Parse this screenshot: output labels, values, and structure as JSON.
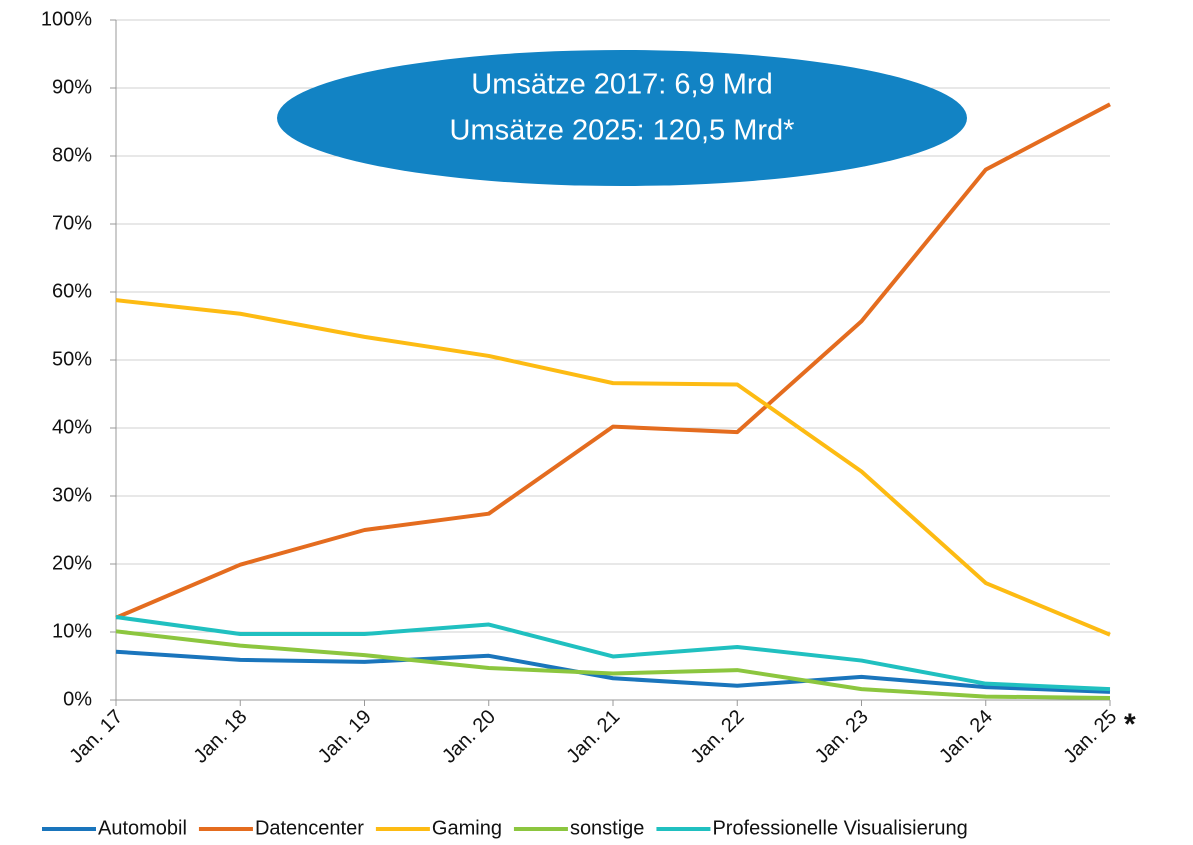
{
  "chart_data": {
    "type": "line",
    "annotation": [
      "Umsätze 2017: 6,9 Mrd",
      "Umsätze 2025: 120,5 Mrd*"
    ],
    "annotation_color": "#1283c4",
    "categories": [
      "Jan. 17",
      "Jan. 18",
      "Jan. 19",
      "Jan. 20",
      "Jan. 21",
      "Jan. 22",
      "Jan. 23",
      "Jan. 24",
      "Jan. 25"
    ],
    "category_note": "*",
    "series": [
      {
        "name": "Automobil",
        "color": "#1a75bc",
        "values": [
          7.1,
          5.9,
          5.6,
          6.5,
          3.2,
          2.1,
          3.4,
          1.9,
          1.2
        ]
      },
      {
        "name": "Datencenter",
        "color": "#e46c1f",
        "values": [
          12.1,
          19.9,
          25.0,
          27.4,
          40.2,
          39.4,
          55.7,
          78.0,
          87.6
        ]
      },
      {
        "name": "Gaming",
        "color": "#fdbb13",
        "values": [
          58.8,
          56.8,
          53.4,
          50.6,
          46.6,
          46.4,
          33.6,
          17.2,
          9.6
        ]
      },
      {
        "name": "sonstige",
        "color": "#8cc63f",
        "values": [
          10.1,
          8.0,
          6.6,
          4.7,
          3.9,
          4.4,
          1.6,
          0.5,
          0.3
        ]
      },
      {
        "name": "Professionelle Visualisierung",
        "color": "#20c0c0",
        "values": [
          12.2,
          9.7,
          9.7,
          11.1,
          6.4,
          7.8,
          5.8,
          2.4,
          1.6
        ]
      }
    ],
    "ylim": [
      0,
      100
    ],
    "yticks": [
      {
        "value": 0,
        "label": "0%"
      },
      {
        "value": 10,
        "label": "10%"
      },
      {
        "value": 20,
        "label": "20%"
      },
      {
        "value": 30,
        "label": "30%"
      },
      {
        "value": 40,
        "label": "40%"
      },
      {
        "value": 50,
        "label": "50%"
      },
      {
        "value": 60,
        "label": "60%"
      },
      {
        "value": 70,
        "label": "70%"
      },
      {
        "value": 80,
        "label": "80%"
      },
      {
        "value": 90,
        "label": "90%"
      },
      {
        "value": 100,
        "label": "100%"
      }
    ],
    "grid": true,
    "legend": "bottom"
  }
}
